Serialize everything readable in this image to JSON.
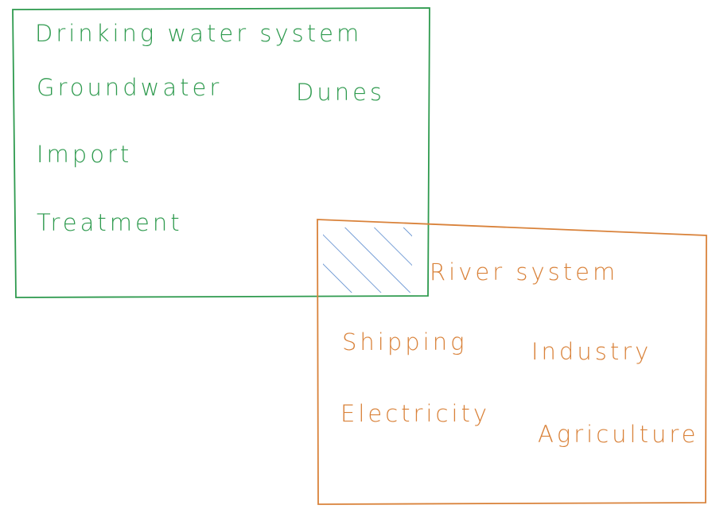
{
  "systems": [
    {
      "title": "Drinking water system",
      "items": [
        "Groundwater",
        "Dunes",
        "Import",
        "Treatment"
      ]
    },
    {
      "title": "River system",
      "items": [
        "Shipping",
        "Industry",
        "Electricity",
        "Agriculture"
      ]
    }
  ]
}
